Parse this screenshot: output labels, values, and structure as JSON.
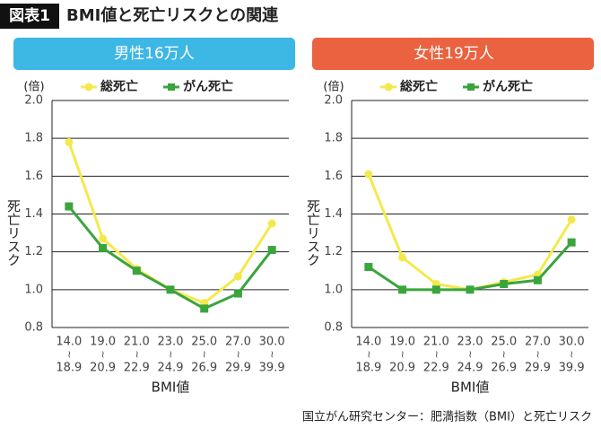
{
  "header": {
    "label": "図表1",
    "title": "BMI値と死亡リスクとの関連"
  },
  "chart_data": [
    {
      "type": "line",
      "banner": "男性16万人",
      "banner_color": "#3db7e4",
      "unit_label": "(倍)",
      "ylabel": "死亡リスク",
      "xlabel": "BMI値",
      "categories": [
        [
          "14.0",
          "18.9"
        ],
        [
          "19.0",
          "20.9"
        ],
        [
          "21.0",
          "22.9"
        ],
        [
          "23.0",
          "24.9"
        ],
        [
          "25.0",
          "26.9"
        ],
        [
          "27.0",
          "29.9"
        ],
        [
          "30.0",
          "39.9"
        ]
      ],
      "series": [
        {
          "name": "総死亡",
          "color": "#f4e94c",
          "marker": "circle",
          "values": [
            1.78,
            1.27,
            1.11,
            1.0,
            0.93,
            1.07,
            1.35
          ]
        },
        {
          "name": "がん死亡",
          "color": "#3aa53c",
          "marker": "square",
          "values": [
            1.44,
            1.22,
            1.1,
            1.0,
            0.9,
            0.98,
            1.21
          ]
        }
      ],
      "ylim": [
        0.8,
        2.0
      ],
      "yticks": [
        0.8,
        {
          "value": 1,
          "label": "1.0"
        },
        1.2,
        1.4,
        1.6,
        1.8,
        {
          "value": 2,
          "label": "2.0"
        }
      ],
      "grid": true
    },
    {
      "type": "line",
      "banner": "女性19万人",
      "banner_color": "#ea6240",
      "unit_label": "(倍)",
      "ylabel": "死亡リスク",
      "xlabel": "BMI値",
      "categories": [
        [
          "14.0",
          "18.9"
        ],
        [
          "19.0",
          "20.9"
        ],
        [
          "21.0",
          "22.9"
        ],
        [
          "23.0",
          "24.9"
        ],
        [
          "25.0",
          "26.9"
        ],
        [
          "27.0",
          "29.9"
        ],
        [
          "30.0",
          "39.9"
        ]
      ],
      "series": [
        {
          "name": "総死亡",
          "color": "#f4e94c",
          "marker": "circle",
          "values": [
            1.61,
            1.17,
            1.03,
            1.0,
            1.04,
            1.08,
            1.37
          ]
        },
        {
          "name": "がん死亡",
          "color": "#3aa53c",
          "marker": "square",
          "values": [
            1.12,
            1.0,
            1.0,
            1.0,
            1.03,
            1.05,
            1.25
          ]
        }
      ],
      "ylim": [
        0.8,
        2.0
      ],
      "yticks": [
        0.8,
        {
          "value": 1,
          "label": "1.0"
        },
        1.2,
        1.4,
        1.6,
        1.8,
        {
          "value": 2,
          "label": "2.0"
        }
      ],
      "grid": true
    }
  ],
  "source": "国立がん研究センター：肥満指数（BMI）と死亡リスク"
}
